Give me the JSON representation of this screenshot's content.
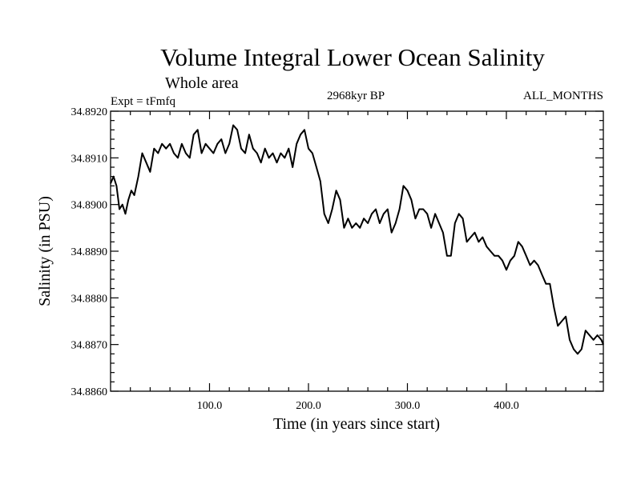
{
  "chart_data": {
    "type": "line",
    "title": "Volume Integral Lower Ocean Salinity",
    "subtitle": "Whole area",
    "left_label": "Expt = tFmfq",
    "center_label": "2968kyr BP",
    "right_label": "ALL_MONTHS",
    "xlabel": "Time (in years since start)",
    "ylabel": "Salinity (in PSU)",
    "xlim": [
      0,
      498
    ],
    "ylim": [
      34.886,
      34.892
    ],
    "xticks": [
      100,
      200,
      300,
      400
    ],
    "xtick_labels": [
      "100.0",
      "200.0",
      "300.0",
      "400.0"
    ],
    "yticks": [
      34.886,
      34.887,
      34.888,
      34.889,
      34.89,
      34.891,
      34.892
    ],
    "ytick_labels": [
      "34.8860",
      "34.8870",
      "34.8880",
      "34.8890",
      "34.8900",
      "34.8910",
      "34.8920"
    ],
    "series": [
      {
        "name": "Salinity",
        "color": "#000000",
        "x": [
          0,
          3,
          6,
          9,
          12,
          15,
          18,
          21,
          24,
          28,
          32,
          36,
          40,
          44,
          48,
          52,
          56,
          60,
          64,
          68,
          72,
          76,
          80,
          84,
          88,
          92,
          96,
          100,
          104,
          108,
          112,
          116,
          120,
          124,
          128,
          132,
          136,
          140,
          144,
          148,
          152,
          156,
          160,
          164,
          168,
          172,
          176,
          180,
          184,
          188,
          192,
          196,
          200,
          204,
          208,
          212,
          216,
          220,
          224,
          228,
          232,
          236,
          240,
          244,
          248,
          252,
          256,
          260,
          264,
          268,
          272,
          276,
          280,
          284,
          288,
          292,
          296,
          300,
          304,
          308,
          312,
          316,
          320,
          324,
          328,
          332,
          336,
          340,
          344,
          348,
          352,
          356,
          360,
          364,
          368,
          372,
          376,
          380,
          384,
          388,
          392,
          396,
          400,
          404,
          408,
          412,
          416,
          420,
          424,
          428,
          432,
          436,
          440,
          444,
          448,
          452,
          456,
          460,
          464,
          468,
          472,
          476,
          480,
          484,
          488,
          492,
          496,
          498
        ],
        "values": [
          34.89045,
          34.8906,
          34.8904,
          34.8899,
          34.89,
          34.8898,
          34.8901,
          34.8903,
          34.8902,
          34.8906,
          34.8911,
          34.8909,
          34.8907,
          34.8912,
          34.8911,
          34.8913,
          34.8912,
          34.8913,
          34.8911,
          34.891,
          34.8913,
          34.8911,
          34.891,
          34.8915,
          34.8916,
          34.8911,
          34.8913,
          34.8912,
          34.8911,
          34.8913,
          34.8914,
          34.8911,
          34.8913,
          34.8917,
          34.8916,
          34.8912,
          34.8911,
          34.8915,
          34.8912,
          34.8911,
          34.8909,
          34.8912,
          34.891,
          34.8911,
          34.8909,
          34.8911,
          34.891,
          34.8912,
          34.8908,
          34.8913,
          34.8915,
          34.8916,
          34.8912,
          34.8911,
          34.8908,
          34.8905,
          34.8898,
          34.8896,
          34.8899,
          34.8903,
          34.8901,
          34.8895,
          34.8897,
          34.8895,
          34.8896,
          34.8895,
          34.8897,
          34.8896,
          34.8898,
          34.8899,
          34.8896,
          34.8898,
          34.8899,
          34.8894,
          34.8896,
          34.8899,
          34.8904,
          34.8903,
          34.8901,
          34.8897,
          34.8899,
          34.8899,
          34.8898,
          34.8895,
          34.8898,
          34.8896,
          34.8894,
          34.8889,
          34.8889,
          34.8896,
          34.8898,
          34.8897,
          34.8892,
          34.8893,
          34.8894,
          34.8892,
          34.8893,
          34.8891,
          34.889,
          34.8889,
          34.8889,
          34.8888,
          34.8886,
          34.8888,
          34.8889,
          34.8892,
          34.8891,
          34.8889,
          34.8887,
          34.8888,
          34.8887,
          34.8885,
          34.8883,
          34.8883,
          34.8878,
          34.8874,
          34.8875,
          34.8876,
          34.8871,
          34.8869,
          34.8868,
          34.8869,
          34.8873,
          34.8872,
          34.8871,
          34.8872,
          34.8871,
          34.887
        ]
      }
    ]
  }
}
